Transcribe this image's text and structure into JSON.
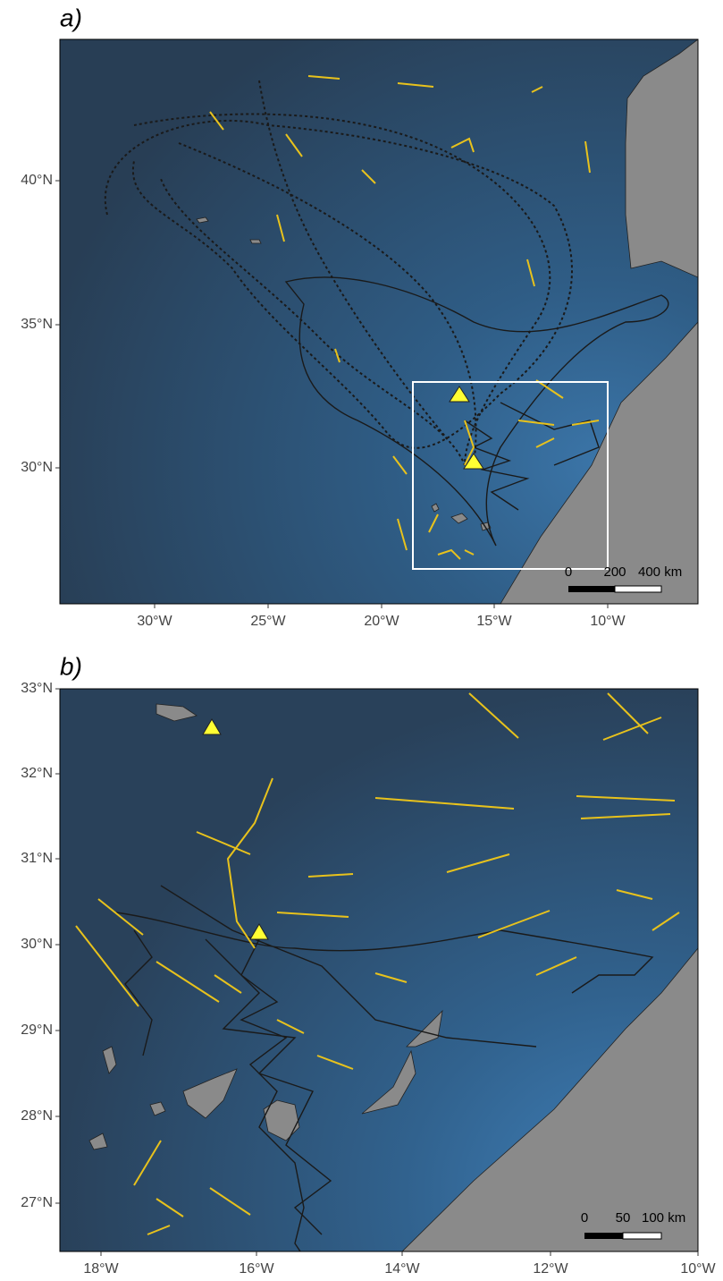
{
  "panels": [
    {
      "label": "a)",
      "xticks": [
        "30°W",
        "25°W",
        "20°W",
        "15°W",
        "10°W"
      ],
      "yticks": [
        "40°N",
        "35°N",
        "30°N"
      ],
      "scale": [
        "0",
        "200",
        "400 km"
      ]
    },
    {
      "label": "b)",
      "xticks": [
        "18°W",
        "16°W",
        "14°W",
        "12°W",
        "10°W"
      ],
      "yticks": [
        "33°N",
        "32°N",
        "31°N",
        "30°N",
        "29°N",
        "28°N",
        "27°N"
      ],
      "scale": [
        "0",
        "50",
        "100 km"
      ]
    }
  ]
}
